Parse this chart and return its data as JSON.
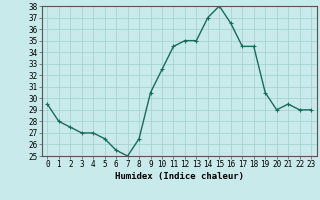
{
  "x": [
    0,
    1,
    2,
    3,
    4,
    5,
    6,
    7,
    8,
    9,
    10,
    11,
    12,
    13,
    14,
    15,
    16,
    17,
    18,
    19,
    20,
    21,
    22,
    23
  ],
  "y": [
    29.5,
    28.0,
    27.5,
    27.0,
    27.0,
    26.5,
    25.5,
    25.0,
    26.5,
    30.5,
    32.5,
    34.5,
    35.0,
    35.0,
    37.0,
    38.0,
    36.5,
    34.5,
    34.5,
    30.5,
    29.0,
    29.5,
    29.0,
    29.0
  ],
  "line_color": "#1a6b5a",
  "marker": "+",
  "bg_color": "#c8eaea",
  "grid_color": "#a0d0d0",
  "xlabel": "Humidex (Indice chaleur)",
  "ylim": [
    25,
    38
  ],
  "xlim_min": -0.5,
  "xlim_max": 23.5,
  "yticks": [
    25,
    26,
    27,
    28,
    29,
    30,
    31,
    32,
    33,
    34,
    35,
    36,
    37,
    38
  ],
  "xticks": [
    0,
    1,
    2,
    3,
    4,
    5,
    6,
    7,
    8,
    9,
    10,
    11,
    12,
    13,
    14,
    15,
    16,
    17,
    18,
    19,
    20,
    21,
    22,
    23
  ],
  "tick_fontsize": 5.5,
  "label_fontsize": 6.5,
  "linewidth": 1.0,
  "markersize": 3
}
